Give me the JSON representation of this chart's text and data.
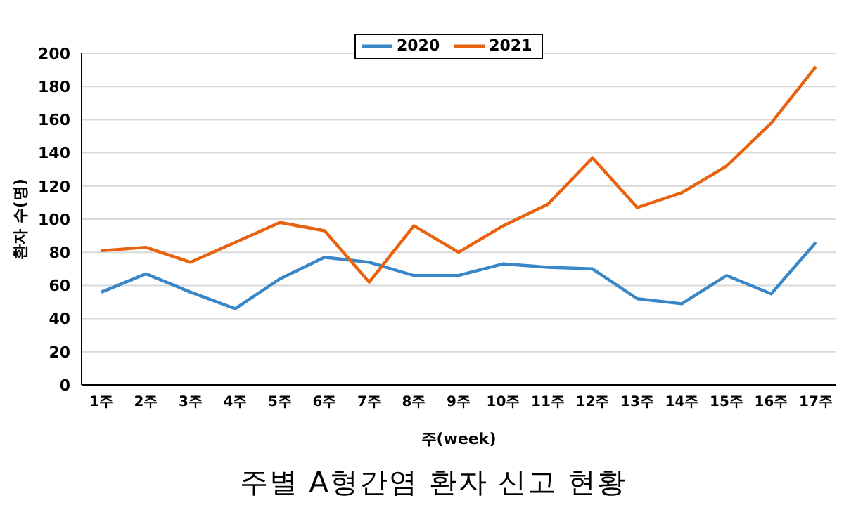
{
  "chart_data": {
    "type": "line",
    "title": "주별 A형간염 환자 신고 현황",
    "xlabel": "주(week)",
    "ylabel": "환자 수(명)",
    "categories": [
      "1주",
      "2주",
      "3주",
      "4주",
      "5주",
      "6주",
      "7주",
      "8주",
      "9주",
      "10주",
      "11주",
      "12주",
      "13주",
      "14주",
      "15주",
      "16주",
      "17주"
    ],
    "series": [
      {
        "name": "2020",
        "color": "#3a87c8",
        "values": [
          56,
          67,
          56,
          46,
          64,
          77,
          74,
          66,
          66,
          73,
          71,
          70,
          52,
          49,
          66,
          55,
          86
        ]
      },
      {
        "name": "2021",
        "color": "#e8630f",
        "values": [
          81,
          83,
          74,
          86,
          98,
          93,
          62,
          96,
          80,
          96,
          109,
          137,
          107,
          116,
          132,
          158,
          192
        ]
      }
    ],
    "ylim": [
      0,
      200
    ],
    "yticks": [
      0,
      20,
      40,
      60,
      80,
      100,
      120,
      140,
      160,
      180,
      200
    ],
    "grid": "y",
    "legend": "top",
    "marker": "none",
    "line_style": "solid"
  }
}
